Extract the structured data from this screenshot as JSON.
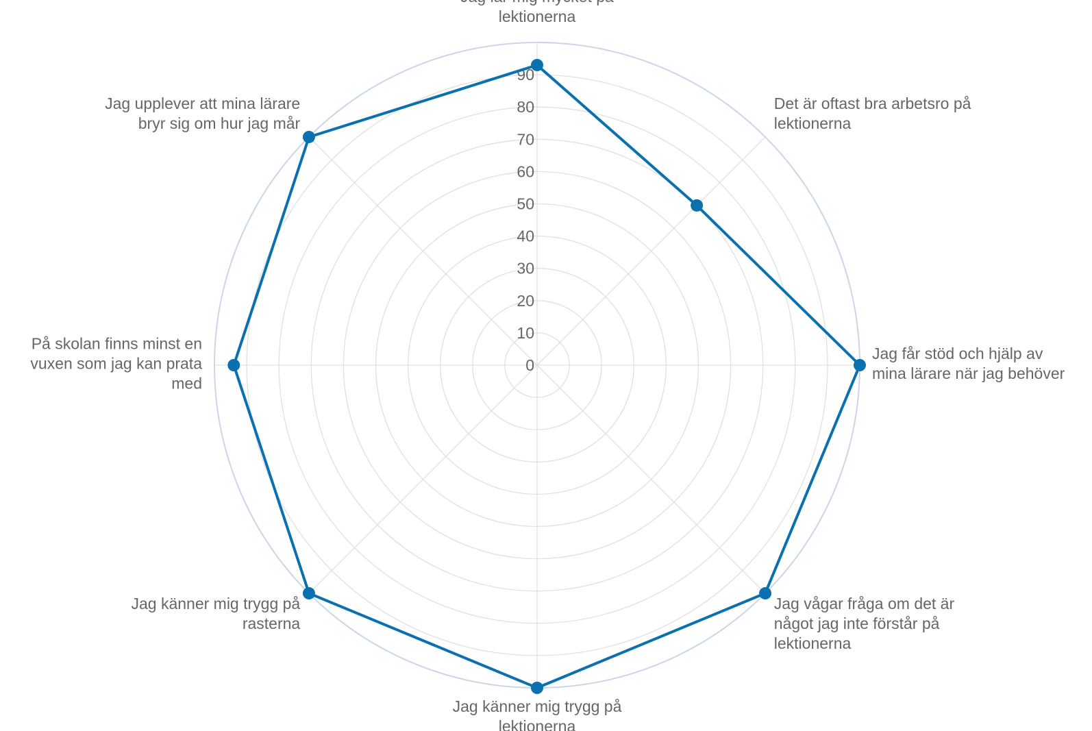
{
  "colors": {
    "series": "#0a70b0",
    "grid": "#e0e0e0",
    "outer_ring": "#c9d6ea",
    "text": "#666666"
  },
  "chart_data": {
    "type": "radar",
    "categories": [
      "Jag lär mig mycket på lektionerna",
      "Det är oftast bra arbetsro på lektionerna",
      "Jag får stöd och hjälp av mina lärare när jag behöver",
      "Jag vågar fråga om det är något jag inte förstår på lektionerna",
      "Jag känner mig trygg på lektionerna",
      "Jag känner mig trygg på rasterna",
      "På skolan finns minst en vuxen som jag kan prata med",
      "Jag upplever att mina lärare bryr sig om hur jag mår"
    ],
    "category_label_lines": [
      [
        "Jag lär mig mycket på",
        "lektionerna"
      ],
      [
        "Det är oftast bra arbetsro på",
        "lektionerna"
      ],
      [
        "Jag får stöd och hjälp av",
        "mina lärare när jag behöver"
      ],
      [
        "Jag vågar fråga om det är",
        "något jag inte förstår på",
        "lektionerna"
      ],
      [
        "Jag känner mig trygg på",
        "lektionerna"
      ],
      [
        "Jag känner mig trygg på",
        "rasterna"
      ],
      [
        "På skolan finns minst en",
        "vuxen som jag kan prata",
        "med"
      ],
      [
        "Jag upplever att mina lärare",
        "bryr sig om hur jag mår"
      ]
    ],
    "series": [
      {
        "values": [
          93,
          70,
          100,
          100,
          100,
          100,
          94,
          100
        ]
      }
    ],
    "radial_ticks": [
      "0",
      "10",
      "20",
      "30",
      "40",
      "50",
      "60",
      "70",
      "80",
      "90"
    ],
    "rmax": 100,
    "rstep": 10,
    "grid": true,
    "legend": "none"
  }
}
